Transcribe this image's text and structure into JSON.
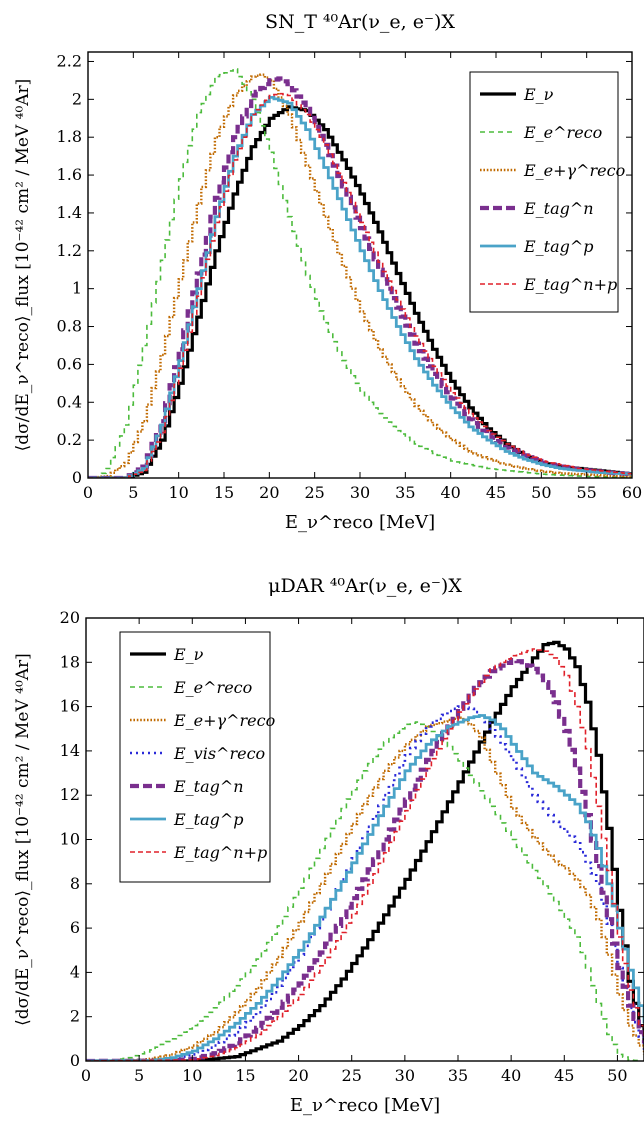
{
  "chart_data": [
    {
      "type": "line",
      "title": "SN_T ⁴⁰Ar(ν_e, e⁻)X",
      "xlabel": "E_ν^reco [MeV]",
      "ylabel": "⟨dσ/dE_ν^reco⟩_flux [10⁻⁴² cm² / MeV ⁴⁰Ar]",
      "xlim": [
        0,
        60
      ],
      "ylim": [
        0,
        2.25
      ],
      "xticks": [
        0,
        5,
        10,
        15,
        20,
        25,
        30,
        35,
        40,
        45,
        50,
        55,
        60
      ],
      "yticks": [
        0,
        0.2,
        0.4,
        0.6,
        0.8,
        1,
        1.2,
        1.4,
        1.6,
        1.8,
        2,
        2.2
      ],
      "grid": false,
      "legend": "top-right",
      "series": [
        {
          "name": "E_ν",
          "color": "#000000",
          "dash": "solid",
          "width": 3.2,
          "x": [
            0,
            4,
            6,
            8,
            10,
            12,
            14,
            16,
            18,
            20,
            22,
            24,
            26,
            28,
            30,
            32,
            34,
            36,
            38,
            40,
            42,
            44,
            46,
            48,
            50,
            52,
            54,
            56,
            58,
            60
          ],
          "y": [
            0,
            0,
            0.03,
            0.2,
            0.5,
            0.85,
            1.2,
            1.5,
            1.75,
            1.9,
            1.96,
            1.94,
            1.84,
            1.68,
            1.5,
            1.3,
            1.08,
            0.87,
            0.68,
            0.51,
            0.37,
            0.26,
            0.18,
            0.12,
            0.08,
            0.06,
            0.05,
            0.04,
            0.03,
            0.02
          ]
        },
        {
          "name": "E_e^reco",
          "color": "#4cbb3c",
          "dash": "5,4",
          "width": 1.6,
          "x": [
            0,
            1,
            2,
            4,
            6,
            8,
            10,
            12,
            14,
            16,
            18,
            20,
            22,
            24,
            26,
            28,
            30,
            32,
            34,
            36,
            38,
            40,
            42,
            44,
            46,
            48,
            50,
            52,
            54,
            56,
            58,
            60
          ],
          "y": [
            0,
            0,
            0.05,
            0.28,
            0.7,
            1.15,
            1.58,
            1.93,
            2.12,
            2.16,
            2.0,
            1.72,
            1.38,
            1.07,
            0.82,
            0.62,
            0.46,
            0.34,
            0.25,
            0.18,
            0.13,
            0.09,
            0.07,
            0.05,
            0.04,
            0.03,
            0.02,
            0.015,
            0.01,
            0.007,
            0.005,
            0.003
          ]
        },
        {
          "name": "E_e+γ^reco",
          "color": "#c06a00",
          "dash": "1.6,1.8",
          "width": 2.4,
          "x": [
            0,
            2,
            4,
            6,
            8,
            10,
            12,
            14,
            16,
            18,
            19,
            20,
            22,
            24,
            26,
            28,
            30,
            32,
            34,
            36,
            38,
            40,
            42,
            44,
            46,
            48,
            50,
            52,
            54,
            56,
            58,
            60
          ],
          "y": [
            0,
            0.01,
            0.08,
            0.3,
            0.65,
            1.05,
            1.45,
            1.8,
            2.02,
            2.12,
            2.13,
            2.1,
            1.92,
            1.65,
            1.38,
            1.12,
            0.88,
            0.68,
            0.52,
            0.38,
            0.28,
            0.2,
            0.14,
            0.1,
            0.07,
            0.05,
            0.035,
            0.025,
            0.02,
            0.015,
            0.01,
            0.007
          ]
        },
        {
          "name": "E_tag^n",
          "color": "#7a2f8e",
          "dash": "9,4",
          "width": 4.2,
          "x": [
            0,
            4,
            6,
            8,
            10,
            12,
            14,
            16,
            18,
            20,
            21,
            22,
            24,
            26,
            28,
            30,
            32,
            34,
            36,
            38,
            40,
            42,
            44,
            46,
            48,
            50,
            52,
            54,
            56,
            58,
            60
          ],
          "y": [
            0,
            0,
            0.06,
            0.3,
            0.68,
            1.08,
            1.48,
            1.8,
            2.02,
            2.1,
            2.11,
            2.08,
            1.95,
            1.76,
            1.54,
            1.32,
            1.1,
            0.9,
            0.71,
            0.55,
            0.42,
            0.31,
            0.23,
            0.16,
            0.12,
            0.08,
            0.06,
            0.045,
            0.035,
            0.025,
            0.02
          ]
        },
        {
          "name": "E_tag^p",
          "color": "#4aa3c8",
          "dash": "solid",
          "width": 2.8,
          "x": [
            0,
            4,
            6,
            8,
            10,
            12,
            14,
            16,
            18,
            20,
            22,
            24,
            26,
            28,
            30,
            32,
            34,
            36,
            38,
            40,
            42,
            44,
            46,
            48,
            50,
            52,
            54,
            56,
            58,
            60
          ],
          "y": [
            0,
            0,
            0.05,
            0.28,
            0.62,
            1.0,
            1.38,
            1.7,
            1.92,
            2.01,
            1.98,
            1.84,
            1.64,
            1.42,
            1.2,
            0.99,
            0.8,
            0.63,
            0.49,
            0.37,
            0.27,
            0.2,
            0.14,
            0.1,
            0.07,
            0.05,
            0.04,
            0.03,
            0.025,
            0.02
          ]
        },
        {
          "name": "E_tag^n+p",
          "color": "#e0202a",
          "dash": "5,3",
          "width": 1.6,
          "x": [
            0,
            4,
            6,
            8,
            10,
            12,
            14,
            16,
            18,
            20,
            21,
            22,
            24,
            26,
            28,
            30,
            32,
            34,
            36,
            38,
            40,
            42,
            44,
            46,
            48,
            50,
            52,
            54,
            56,
            58,
            60
          ],
          "y": [
            0,
            0,
            0.04,
            0.24,
            0.58,
            0.96,
            1.35,
            1.68,
            1.92,
            2.02,
            2.03,
            2.02,
            1.92,
            1.76,
            1.56,
            1.35,
            1.14,
            0.94,
            0.75,
            0.59,
            0.45,
            0.34,
            0.25,
            0.18,
            0.13,
            0.09,
            0.07,
            0.05,
            0.04,
            0.03,
            0.02
          ]
        }
      ]
    },
    {
      "type": "line",
      "title": "μDAR ⁴⁰Ar(ν_e, e⁻)X",
      "xlabel": "E_ν^reco [MeV]",
      "ylabel": "⟨dσ/dE_ν^reco⟩_flux [10⁻⁴² cm² / MeV ⁴⁰Ar]",
      "xlim": [
        0,
        52.5
      ],
      "ylim": [
        0,
        20
      ],
      "xticks": [
        0,
        5,
        10,
        15,
        20,
        25,
        30,
        35,
        40,
        45,
        50
      ],
      "yticks": [
        0,
        2,
        4,
        6,
        8,
        10,
        12,
        14,
        16,
        18,
        20
      ],
      "grid": false,
      "legend": "top-left",
      "series": [
        {
          "name": "E_ν",
          "color": "#000000",
          "dash": "solid",
          "width": 3.2,
          "x": [
            0,
            10,
            14,
            18,
            20,
            22,
            24,
            26,
            28,
            30,
            32,
            34,
            36,
            38,
            40,
            42,
            43,
            44,
            45,
            46,
            47,
            48,
            49,
            50,
            51,
            52,
            52.5
          ],
          "y": [
            0,
            0,
            0.2,
            0.9,
            1.6,
            2.5,
            3.7,
            5.1,
            6.6,
            8.2,
            9.9,
            11.7,
            13.5,
            15.3,
            16.9,
            18.2,
            18.8,
            18.9,
            18.6,
            17.8,
            16.2,
            13.8,
            10.5,
            6.8,
            3.6,
            1.6,
            0.8
          ]
        },
        {
          "name": "E_e^reco",
          "color": "#4cbb3c",
          "dash": "5,4",
          "width": 1.6,
          "x": [
            0,
            2,
            4,
            6,
            8,
            10,
            12,
            14,
            16,
            18,
            20,
            22,
            24,
            26,
            28,
            30,
            31,
            32,
            34,
            36,
            38,
            40,
            42,
            44,
            46,
            47,
            48,
            49,
            50,
            51,
            52
          ],
          "y": [
            0,
            0.02,
            0.15,
            0.5,
            1.0,
            1.6,
            2.4,
            3.4,
            4.6,
            6.1,
            7.8,
            9.6,
            11.4,
            13.1,
            14.4,
            15.2,
            15.3,
            15.1,
            14.2,
            12.9,
            11.5,
            10.0,
            8.6,
            7.2,
            5.6,
            4.2,
            2.6,
            1.2,
            0.3,
            0.05,
            0
          ]
        },
        {
          "name": "E_e+γ^reco",
          "color": "#c06a00",
          "dash": "1.6,1.8",
          "width": 2.4,
          "x": [
            0,
            4,
            6,
            8,
            10,
            12,
            14,
            16,
            18,
            20,
            22,
            24,
            26,
            28,
            30,
            32,
            34,
            35,
            36,
            37,
            38,
            40,
            42,
            44,
            45,
            46,
            47,
            48,
            49,
            50,
            51,
            52,
            52.5
          ],
          "y": [
            0,
            0.02,
            0.1,
            0.3,
            0.7,
            1.3,
            2.2,
            3.3,
            4.7,
            6.3,
            8.0,
            9.8,
            11.6,
            13.1,
            14.3,
            15.1,
            15.4,
            15.5,
            15.2,
            14.6,
            13.5,
            11.4,
            10.1,
            9.0,
            8.7,
            8.2,
            7.5,
            6.4,
            4.8,
            3.0,
            1.6,
            0.7,
            0.3
          ]
        },
        {
          "name": "E_vis^reco",
          "color": "#2a2ad8",
          "dash": "2,4",
          "width": 2.6,
          "x": [
            0,
            6,
            8,
            10,
            12,
            14,
            16,
            18,
            20,
            22,
            24,
            26,
            28,
            30,
            32,
            34,
            35,
            36,
            37,
            38,
            40,
            42,
            44,
            46,
            48,
            49,
            50,
            51,
            52,
            52.5
          ],
          "y": [
            0,
            0.02,
            0.1,
            0.3,
            0.7,
            1.3,
            2.2,
            3.4,
            4.8,
            6.4,
            8.2,
            10.1,
            12.0,
            13.8,
            15.1,
            15.8,
            16.0,
            15.9,
            15.6,
            15.0,
            13.6,
            12.0,
            10.8,
            9.9,
            8.0,
            6.2,
            4.2,
            2.4,
            1.1,
            0.5
          ]
        },
        {
          "name": "E_tag^n",
          "color": "#7a2f8e",
          "dash": "9,4",
          "width": 4.2,
          "x": [
            0,
            8,
            10,
            12,
            14,
            16,
            18,
            20,
            22,
            24,
            26,
            28,
            30,
            32,
            34,
            36,
            38,
            40,
            41,
            42,
            43,
            44,
            45,
            46,
            47,
            48,
            49,
            50,
            51,
            52,
            52.5
          ],
          "y": [
            0,
            0.02,
            0.1,
            0.35,
            0.8,
            1.5,
            2.4,
            3.5,
            4.9,
            6.5,
            8.2,
            10.0,
            11.8,
            13.6,
            15.2,
            16.6,
            17.6,
            18.1,
            18.0,
            17.7,
            17.1,
            16.2,
            14.9,
            13.2,
            11.1,
            8.8,
            6.4,
            4.2,
            2.5,
            1.3,
            0.8
          ]
        },
        {
          "name": "E_tag^p",
          "color": "#4aa3c8",
          "dash": "solid",
          "width": 2.8,
          "x": [
            0,
            6,
            8,
            10,
            12,
            14,
            16,
            18,
            20,
            22,
            24,
            26,
            28,
            30,
            32,
            34,
            36,
            37,
            38,
            39,
            40,
            42,
            44,
            46,
            47,
            48,
            49,
            50,
            51,
            52,
            52.5
          ],
          "y": [
            0,
            0.02,
            0.15,
            0.45,
            1.0,
            1.7,
            2.6,
            3.7,
            5.0,
            6.5,
            8.1,
            9.8,
            11.5,
            13.1,
            14.3,
            15.1,
            15.5,
            15.6,
            15.4,
            15.0,
            14.3,
            13.0,
            12.4,
            11.6,
            10.8,
            9.6,
            8.0,
            6.0,
            4.1,
            2.5,
            1.7
          ]
        },
        {
          "name": "E_tag^n+p",
          "color": "#e0202a",
          "dash": "5,3",
          "width": 1.6,
          "x": [
            0,
            10,
            12,
            14,
            16,
            18,
            20,
            22,
            24,
            26,
            28,
            30,
            32,
            34,
            36,
            38,
            40,
            42,
            43,
            44,
            45,
            46,
            47,
            48,
            49,
            50,
            51,
            52,
            52.5
          ],
          "y": [
            0,
            0.05,
            0.25,
            0.6,
            1.2,
            2.0,
            3.0,
            4.3,
            5.8,
            7.5,
            9.4,
            11.3,
            13.2,
            15.0,
            16.5,
            17.7,
            18.3,
            18.6,
            18.5,
            18.2,
            17.4,
            16.0,
            14.1,
            11.5,
            8.6,
            5.6,
            3.2,
            1.6,
            1.0
          ]
        }
      ]
    }
  ]
}
